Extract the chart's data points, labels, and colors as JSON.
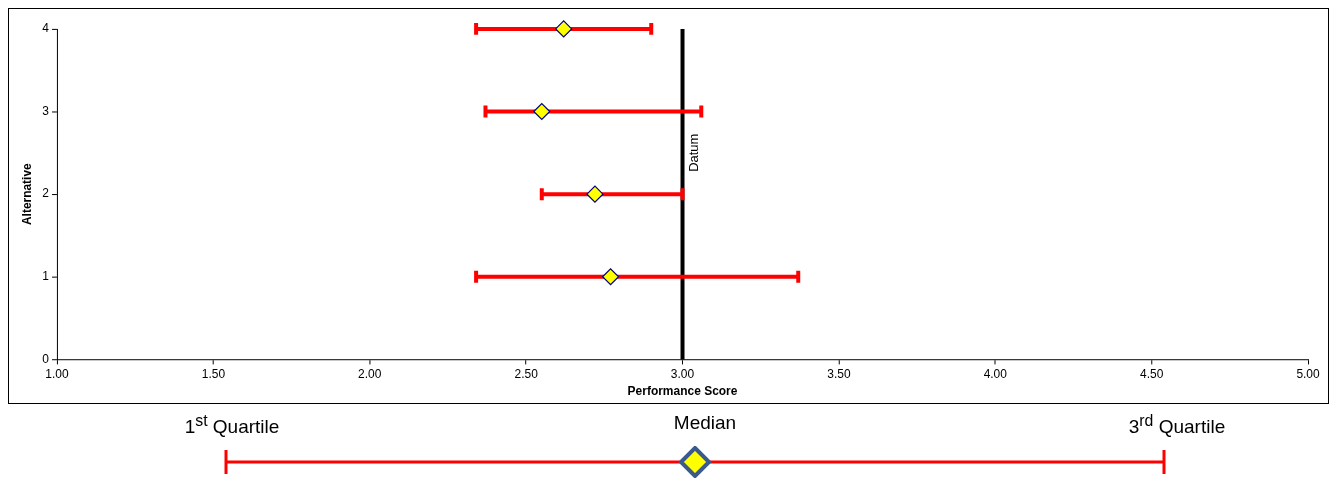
{
  "chart_data": {
    "type": "scatter",
    "xlabel": "Performance Score",
    "ylabel": "Alternative",
    "series": [
      {
        "color": "#ffff00",
        "x": [
          2.77,
          2.72,
          2.55,
          2.62
        ],
        "values": [
          1,
          2,
          3,
          4
        ],
        "xerrors": [
          [
            2.34,
            3.37
          ],
          [
            2.55,
            3.0
          ],
          [
            2.37,
            3.06
          ],
          [
            2.34,
            2.9
          ]
        ]
      }
    ],
    "xlim": [
      1,
      5
    ],
    "ylim": [
      0,
      4
    ],
    "xticks": [
      {
        "value": 1,
        "label": "1.00"
      },
      {
        "value": 1.5,
        "label": "1.50"
      },
      {
        "value": 2,
        "label": "2.00"
      },
      {
        "value": 2.5,
        "label": "2.50"
      },
      {
        "value": 3,
        "label": "3.00"
      },
      {
        "value": 3.5,
        "label": "3.50"
      },
      {
        "value": 4,
        "label": "4.00"
      },
      {
        "value": 4.5,
        "label": "4.50"
      },
      {
        "value": 5,
        "label": "5.00"
      }
    ],
    "yticks": [
      0,
      1,
      2,
      3,
      4
    ],
    "marker": "diamond",
    "grid": false,
    "legend": false,
    "ref_lines": [
      {
        "axis": "x",
        "value": 3,
        "label": "Datum",
        "color": "#000000"
      }
    ],
    "annotations": [
      "1$^{st}$ Quartile",
      "Median",
      "3$^{rd}$ Quartile"
    ]
  }
}
